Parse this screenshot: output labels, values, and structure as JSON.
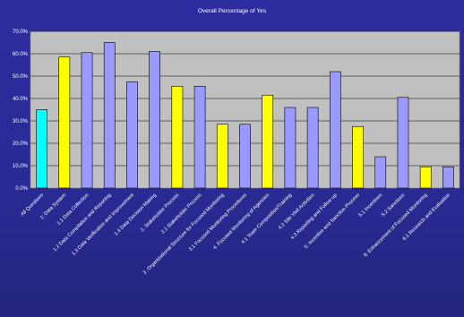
{
  "chart_data": {
    "type": "bar",
    "title": "Overall Percentage of Yes",
    "xlabel": "",
    "ylabel": "",
    "ylim": [
      0,
      70
    ],
    "y_ticks": [
      "0.0%",
      "10.0%",
      "20.0%",
      "30.0%",
      "40.0%",
      "50.0%",
      "60.0%",
      "70.0%"
    ],
    "grid": true,
    "legend": "none",
    "categories": [
      "All Questions",
      "1: Data System",
      "1.1 Data Collection",
      "1.2 Data Compilation and Reporting",
      "1.3 Data Verification and Improvement",
      "1.4 Data Decision Making",
      "2. Stakeholder Process",
      "2.1 Stakeholder Process",
      "3. Organizational Structure for Focused Monitoring",
      "3.1 Focused Monitoring Procedures",
      "4. Focused Monitoring of Agencies",
      "4.1 Team Composition/Training",
      "4.2 Site Visit Activities",
      "4.3 Reporting and Follow-up",
      "5: Incentive and Sanction Process",
      "5.1 Incentives",
      "5.2 Sanctions",
      "6: Enhancement of Focused Monitoring",
      "6.1 Research and Evaluation"
    ],
    "values": [
      35,
      58.5,
      60.5,
      65,
      47.5,
      61,
      45.5,
      45.5,
      28.5,
      28.5,
      41.5,
      36,
      36,
      52,
      27.5,
      14,
      40.5,
      9.5,
      9.5
    ],
    "bar_colors": [
      "#00ffff",
      "#ffff00",
      "#9999ff",
      "#9999ff",
      "#9999ff",
      "#9999ff",
      "#ffff00",
      "#9999ff",
      "#ffff00",
      "#9999ff",
      "#ffff00",
      "#9999ff",
      "#9999ff",
      "#9999ff",
      "#ffff00",
      "#9999ff",
      "#9999ff",
      "#ffff00",
      "#9999ff"
    ],
    "plot_background": "#c0c0c0",
    "gridline_color": "#000000"
  }
}
